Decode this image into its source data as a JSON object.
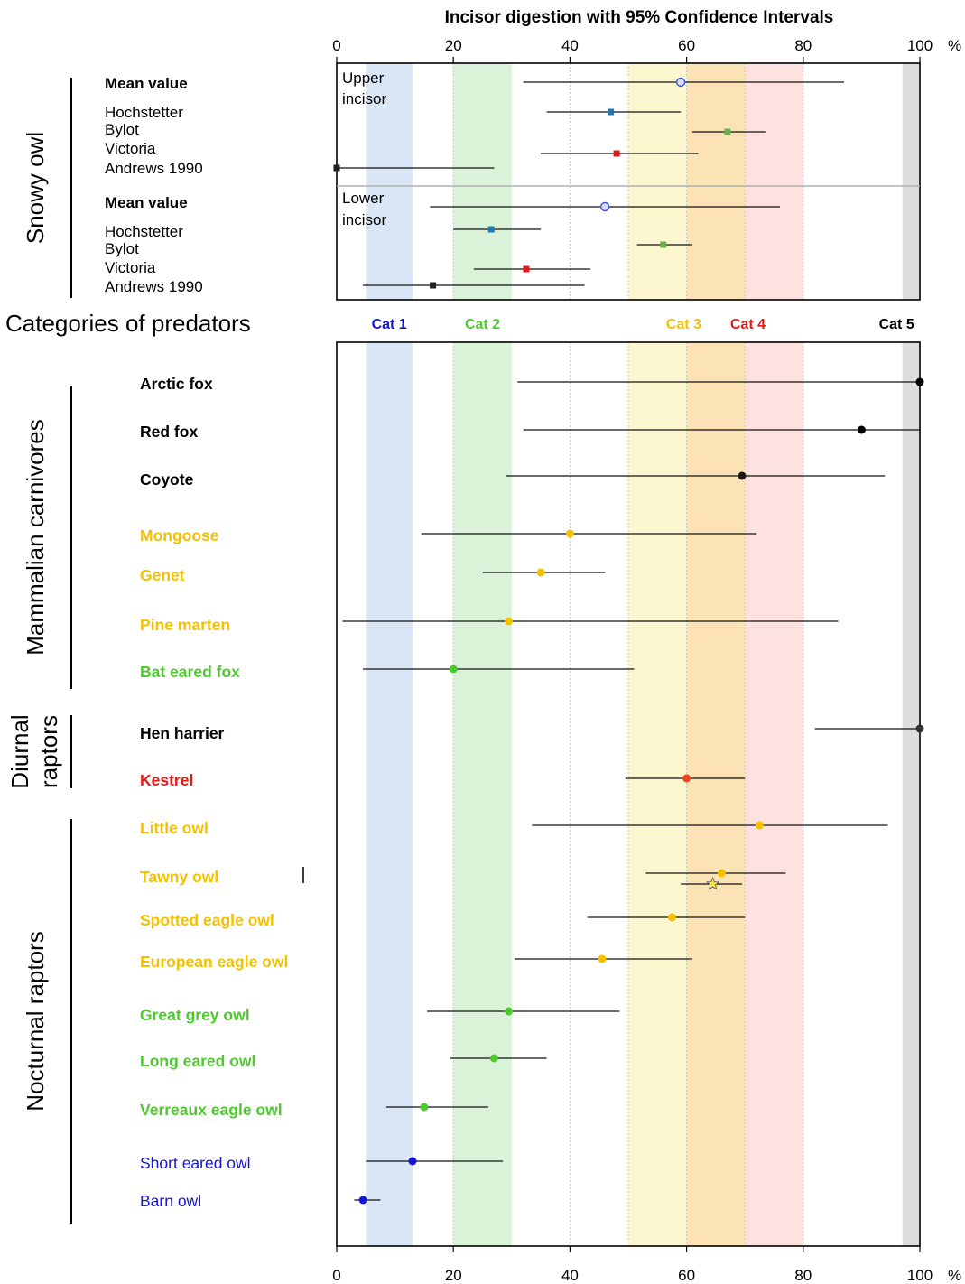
{
  "chart_data": {
    "type": "scatter",
    "title": "Incisor digestion with 95% Confidence Intervals",
    "x_unit": "%",
    "xlim": [
      0,
      100
    ],
    "x_ticks": [
      "0",
      "20",
      "40",
      "60",
      "80",
      "100"
    ],
    "xlabel": "",
    "ylabel": "",
    "grid": "dotted vertical at 40",
    "categories_label": "Categories of predators",
    "bands": [
      {
        "label": "Cat 1",
        "from": 5,
        "to": 13,
        "fill": "#d8e6f5",
        "label_color": "#1515d6",
        "label_x": 9
      },
      {
        "label": "Cat 2",
        "from": 20,
        "to": 30,
        "fill": "#daf3d8",
        "label_color": "#4fc92f",
        "label_x": 25
      },
      {
        "label": "Cat 3",
        "from": 50,
        "to": 60,
        "fill": "#fdf7cf",
        "label_color": "#f5c000",
        "label_x": 59.5
      },
      {
        "label": "Cat 4",
        "from": 60,
        "to": 70,
        "fill": "#fbe3b5",
        "label_color": "#e31a1a",
        "label_x": 70.5
      },
      {
        "label": "Cat 5",
        "from": 97,
        "to": 100,
        "fill": "#dddddd",
        "label_color": "#000000",
        "label_x": 96
      }
    ],
    "extra_band": {
      "from": 70,
      "to": 80,
      "fill": "#fde2e0"
    },
    "snowy_owl": {
      "group_label": "Snowy owl",
      "panels": [
        {
          "panel_label": [
            "Upper",
            "incisor"
          ],
          "rows": [
            {
              "label": "Mean value",
              "bold": true,
              "value": 59,
              "ci": [
                32,
                87
              ],
              "marker": "open-circle",
              "color": "#3b5bd6"
            },
            {
              "label": "Hochstetter",
              "bold": false,
              "value": 47,
              "ci": [
                36,
                59
              ],
              "marker": "square",
              "color": "#1f78b4"
            },
            {
              "label": "Bylot",
              "bold": false,
              "value": 67,
              "ci": [
                61,
                73.5
              ],
              "marker": "square",
              "color": "#6ab04c"
            },
            {
              "label": "Victoria",
              "bold": false,
              "value": 48,
              "ci": [
                35,
                62
              ],
              "marker": "square",
              "color": "#e31a1c"
            },
            {
              "label": "Andrews 1990",
              "bold": false,
              "value": 0,
              "ci": [
                0,
                27
              ],
              "marker": "square",
              "color": "#222222"
            }
          ]
        },
        {
          "panel_label": [
            "Lower",
            "incisor"
          ],
          "rows": [
            {
              "label": "Mean value",
              "bold": true,
              "value": 46,
              "ci": [
                16,
                76
              ],
              "marker": "open-circle",
              "color": "#3b5bd6"
            },
            {
              "label": "Hochstetter",
              "bold": false,
              "value": 26.5,
              "ci": [
                20,
                35
              ],
              "marker": "square",
              "color": "#1f78b4"
            },
            {
              "label": "Bylot",
              "bold": false,
              "value": 56,
              "ci": [
                51.5,
                61
              ],
              "marker": "square",
              "color": "#6ab04c"
            },
            {
              "label": "Victoria",
              "bold": false,
              "value": 32.5,
              "ci": [
                23.5,
                43.5
              ],
              "marker": "square",
              "color": "#e31a1c"
            },
            {
              "label": "Andrews 1990",
              "bold": false,
              "value": 16.5,
              "ci": [
                4.5,
                42.5
              ],
              "marker": "square",
              "color": "#222222"
            }
          ]
        }
      ]
    },
    "predator_groups": [
      {
        "label": [
          "Mammalian carnivores"
        ]
      },
      {
        "label": [
          "Diurnal",
          "raptors"
        ]
      },
      {
        "label": [
          "Nocturnal raptors"
        ]
      }
    ],
    "predators": [
      {
        "label": "Arctic fox",
        "group": 0,
        "bold": true,
        "text_color": "#000000",
        "value": 100,
        "ci": [
          31,
          100
        ],
        "marker": "circle",
        "color": "#000000"
      },
      {
        "label": "Red fox",
        "group": 0,
        "bold": true,
        "text_color": "#000000",
        "value": 90,
        "ci": [
          32,
          100
        ],
        "marker": "circle",
        "color": "#000000"
      },
      {
        "label": "Coyote",
        "group": 0,
        "bold": true,
        "text_color": "#000000",
        "value": 69.5,
        "ci": [
          29,
          94
        ],
        "marker": "circle",
        "color": "#1a1a1a"
      },
      {
        "label": "Mongoose",
        "group": 0,
        "bold": true,
        "text_color": "#f5c000",
        "value": 40,
        "ci": [
          14.5,
          72
        ],
        "marker": "circle",
        "color": "#f5c000"
      },
      {
        "label": "Genet",
        "group": 0,
        "bold": true,
        "text_color": "#f5c000",
        "value": 35,
        "ci": [
          25,
          46
        ],
        "marker": "circle",
        "color": "#f5c000"
      },
      {
        "label": "Pine marten",
        "group": 0,
        "bold": true,
        "text_color": "#f5c000",
        "value": 29.5,
        "ci": [
          1,
          86
        ],
        "marker": "circle",
        "color": "#f5c000"
      },
      {
        "label": "Bat eared fox",
        "group": 0,
        "bold": true,
        "text_color": "#4fc92f",
        "value": 20,
        "ci": [
          4.5,
          51
        ],
        "marker": "circle",
        "color": "#4fc92f"
      },
      {
        "label": "Hen harrier",
        "group": 1,
        "bold": true,
        "text_color": "#000000",
        "value": 100,
        "ci": [
          82,
          100
        ],
        "marker": "circle",
        "color": "#333333"
      },
      {
        "label": "Kestrel",
        "group": 1,
        "bold": true,
        "text_color": "#e31a1a",
        "value": 60,
        "ci": [
          49.5,
          70
        ],
        "marker": "circle",
        "color": "#ee4422"
      },
      {
        "label": "Little owl",
        "group": 2,
        "bold": true,
        "text_color": "#f5c000",
        "value": 72.5,
        "ci": [
          33.5,
          94.5
        ],
        "marker": "circle",
        "color": "#f5c000"
      },
      {
        "label": "Tawny owl",
        "group": 2,
        "bold": true,
        "text_color": "#f5c000",
        "value": 66,
        "ci": [
          53,
          77
        ],
        "marker": "circle",
        "color": "#f5c000",
        "extra": {
          "value": 64.5,
          "ci": [
            59,
            69.5
          ],
          "marker": "star",
          "color": "#f5e63a"
        }
      },
      {
        "label": "Spotted eagle owl",
        "group": 2,
        "bold": true,
        "text_color": "#f5c000",
        "value": 57.5,
        "ci": [
          43,
          70
        ],
        "marker": "circle",
        "color": "#f5c000"
      },
      {
        "label": "European eagle owl",
        "group": 2,
        "bold": true,
        "text_color": "#f5c000",
        "value": 45.5,
        "ci": [
          30.5,
          61
        ],
        "marker": "circle",
        "color": "#f5c000"
      },
      {
        "label": "Great grey owl",
        "group": 2,
        "bold": true,
        "text_color": "#4fc92f",
        "value": 29.5,
        "ci": [
          15.5,
          48.5
        ],
        "marker": "circle",
        "color": "#4fc92f"
      },
      {
        "label": "Long eared owl",
        "group": 2,
        "bold": true,
        "text_color": "#4fc92f",
        "value": 27,
        "ci": [
          19.5,
          36
        ],
        "marker": "circle",
        "color": "#4fc92f"
      },
      {
        "label": "Verreaux eagle owl",
        "group": 2,
        "bold": true,
        "text_color": "#4fc92f",
        "value": 15,
        "ci": [
          8.5,
          26
        ],
        "marker": "circle",
        "color": "#4fc92f"
      },
      {
        "label": "Short eared owl",
        "group": 2,
        "bold": false,
        "text_color": "#1515d6",
        "value": 13,
        "ci": [
          5,
          28.5
        ],
        "marker": "circle",
        "color": "#1515d6"
      },
      {
        "label": "Barn owl",
        "group": 2,
        "bold": false,
        "text_color": "#1515d6",
        "value": 4.5,
        "ci": [
          3,
          7.5
        ],
        "marker": "circle",
        "color": "#1515d6"
      }
    ]
  }
}
